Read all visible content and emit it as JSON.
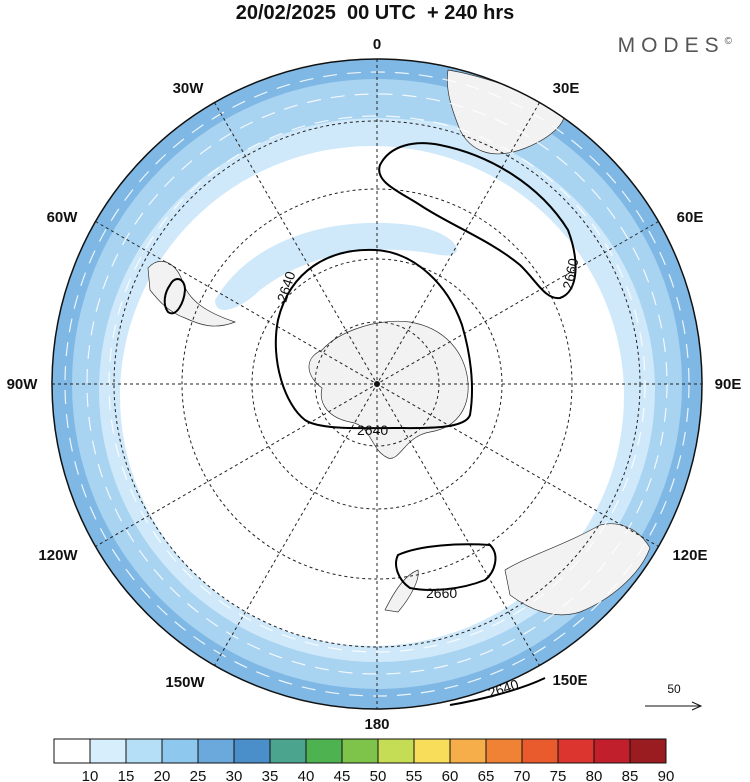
{
  "header": {
    "title": "20/02/2025  00 UTC  + 240 hrs",
    "brand": "MODES",
    "brand_mark": "©"
  },
  "map": {
    "longitude_labels": [
      "0",
      "30E",
      "60E",
      "90E",
      "120E",
      "150E",
      "180",
      "150W",
      "120W",
      "90W",
      "60W",
      "30W"
    ],
    "contour_labels": [
      "2640",
      "2660",
      "2640",
      "2660",
      "2640"
    ],
    "reference_vector": "50"
  },
  "colorbar": {
    "labels": [
      "10",
      "15",
      "20",
      "25",
      "30",
      "35",
      "40",
      "45",
      "50",
      "55",
      "60",
      "65",
      "70",
      "75",
      "80",
      "85",
      "90"
    ],
    "colors": [
      "#ffffff",
      "#d7effc",
      "#b4dff7",
      "#8ec8ee",
      "#6ba8dc",
      "#4a8fca",
      "#4aa48e",
      "#4db24f",
      "#7ec44b",
      "#c5dd55",
      "#f7dd5a",
      "#f5ae49",
      "#f08236",
      "#e95a2c",
      "#dc3530",
      "#c21f2d",
      "#9b1c20"
    ]
  },
  "colors": {
    "ring_outer": "#7fb8e4",
    "ring_mid": "#a8d3f1",
    "ring_inner": "#cfe9fa",
    "land": "#f2f2f2"
  }
}
